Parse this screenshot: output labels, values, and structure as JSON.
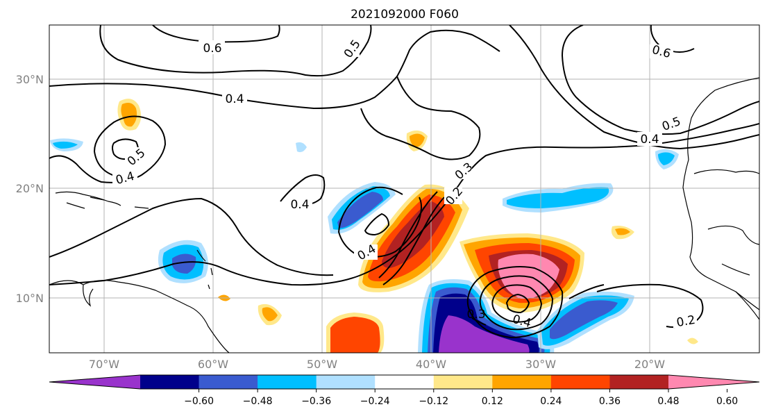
{
  "title": "2021092000 F060",
  "map": {
    "lat_labels": [
      "30°N",
      "20°N",
      "10°N"
    ],
    "lon_labels": [
      "70°W",
      "60°W",
      "50°W",
      "40°W",
      "30°W",
      "20°W"
    ],
    "contour_labels": [
      "0.6",
      "0.5",
      "0.6",
      "0.4",
      "0.5",
      "0.4",
      "0.5",
      "0.4",
      "0.4",
      "0.3",
      "0.2",
      "0.4",
      "0.2",
      "0.4",
      "0.3"
    ]
  },
  "colorbar": {
    "ticks": [
      "−0.60",
      "−0.48",
      "−0.36",
      "−0.24",
      "−0.12",
      "0.12",
      "0.24",
      "0.36",
      "0.48",
      "0.60"
    ],
    "colors": [
      "#9933cc",
      "#00008b",
      "#3a5bcf",
      "#00bfff",
      "#b0e0ff",
      "#ffffff",
      "#ffe88a",
      "#ffa500",
      "#ff4500",
      "#b22222",
      "#ff88b0"
    ]
  }
}
